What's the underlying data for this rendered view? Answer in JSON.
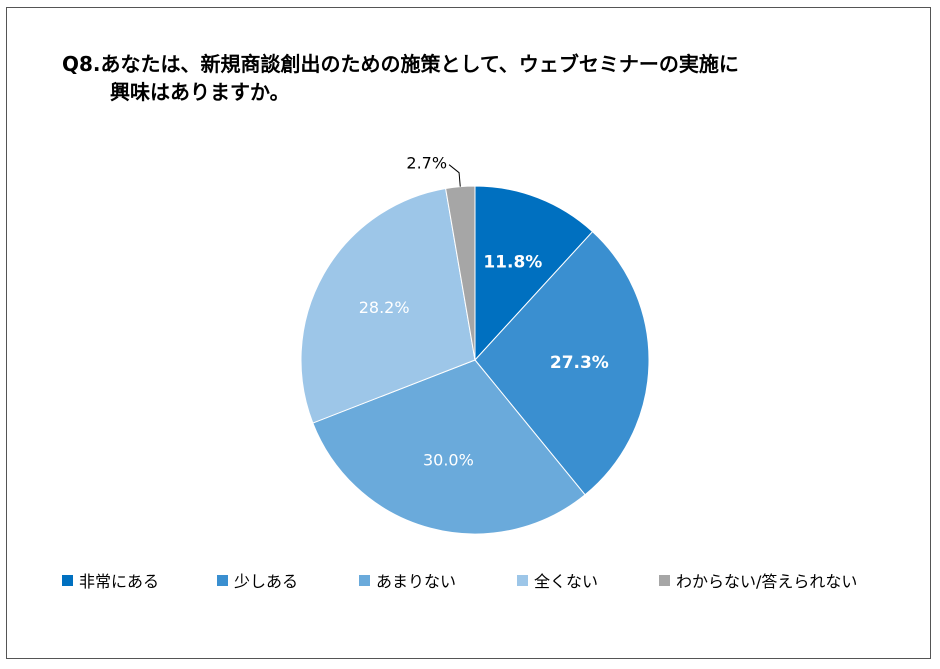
{
  "chart_data": {
    "type": "pie",
    "title_line1": "Q8.あなたは、新規商談創出のための施策として、ウェブセミナーの実施に",
    "title_line2": "興味はありますか。",
    "slices": [
      {
        "label": "非常にある",
        "value": 11.8,
        "display": "11.8%",
        "color": "#0070C0",
        "label_color": "#ffffff",
        "bold": true
      },
      {
        "label": "少しある",
        "value": 27.3,
        "display": "27.3%",
        "color": "#3A8FD0",
        "label_color": "#ffffff",
        "bold": true
      },
      {
        "label": "あまりない",
        "value": 30.0,
        "display": "30.0%",
        "color": "#6AAADB",
        "label_color": "#ffffff",
        "bold": false
      },
      {
        "label": "全くない",
        "value": 28.2,
        "display": "28.2%",
        "color": "#9DC6E8",
        "label_color": "#ffffff",
        "bold": false
      },
      {
        "label": "わからない/答えられない",
        "value": 2.7,
        "display": "2.7%",
        "color": "#A6A6A6",
        "label_color": "#000000",
        "bold": false
      }
    ],
    "legend_position": "bottom"
  }
}
